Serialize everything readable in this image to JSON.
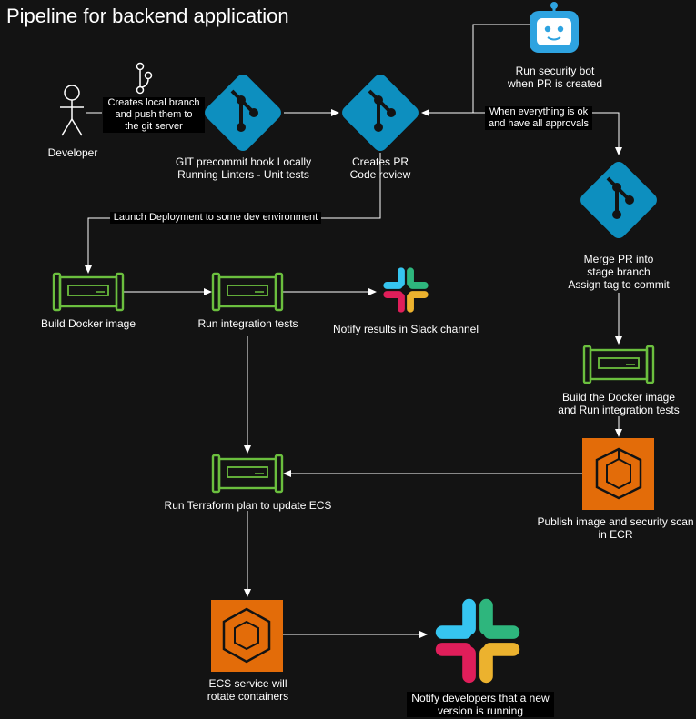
{
  "title": "Pipeline for backend application",
  "nodes": {
    "developer": "Developer",
    "branch_note": "Creates local branch\nand push them to\nthe git server",
    "precommit": "GIT precommit hook Locally\nRunning Linters - Unit tests",
    "create_pr": "Creates PR\nCode review",
    "security_bot": "Run security bot\nwhen PR is created",
    "merge_pr_line1": "Merge PR into\nstage branch",
    "merge_pr_line2": "Assign tag to commit",
    "build_docker": "Build Docker image",
    "integration_tests": "Run integration tests",
    "notify_slack": "Notify results in Slack channel",
    "build_run_stage": "Build the Docker image\nand Run integration tests",
    "publish_ecr": "Publish image and security scan\nin ECR",
    "terraform": "Run Terraform plan to update ECS",
    "ecs_service": "ECS service will\nrotate containers",
    "notify_devs": "Notify developers that a new\nversion is running"
  },
  "edges": {
    "approvals": "When everything is ok\nand have all approvals",
    "launch_dev": "Launch Deployment to some dev environment"
  },
  "icons": {
    "git": "git-logo-icon",
    "pipeline": "pipeline-icon",
    "slack": "slack-icon",
    "bot": "robot-icon",
    "ecr": "aws-ecr-icon",
    "ecs": "aws-ecs-icon",
    "person": "person-icon",
    "branch": "branch-icon"
  },
  "colors": {
    "background": "#131313",
    "git": "#0d8fbf",
    "pipeline": "#6bbf3e",
    "aws_orange": "#e36c09",
    "bot": "#2ea3e0"
  }
}
